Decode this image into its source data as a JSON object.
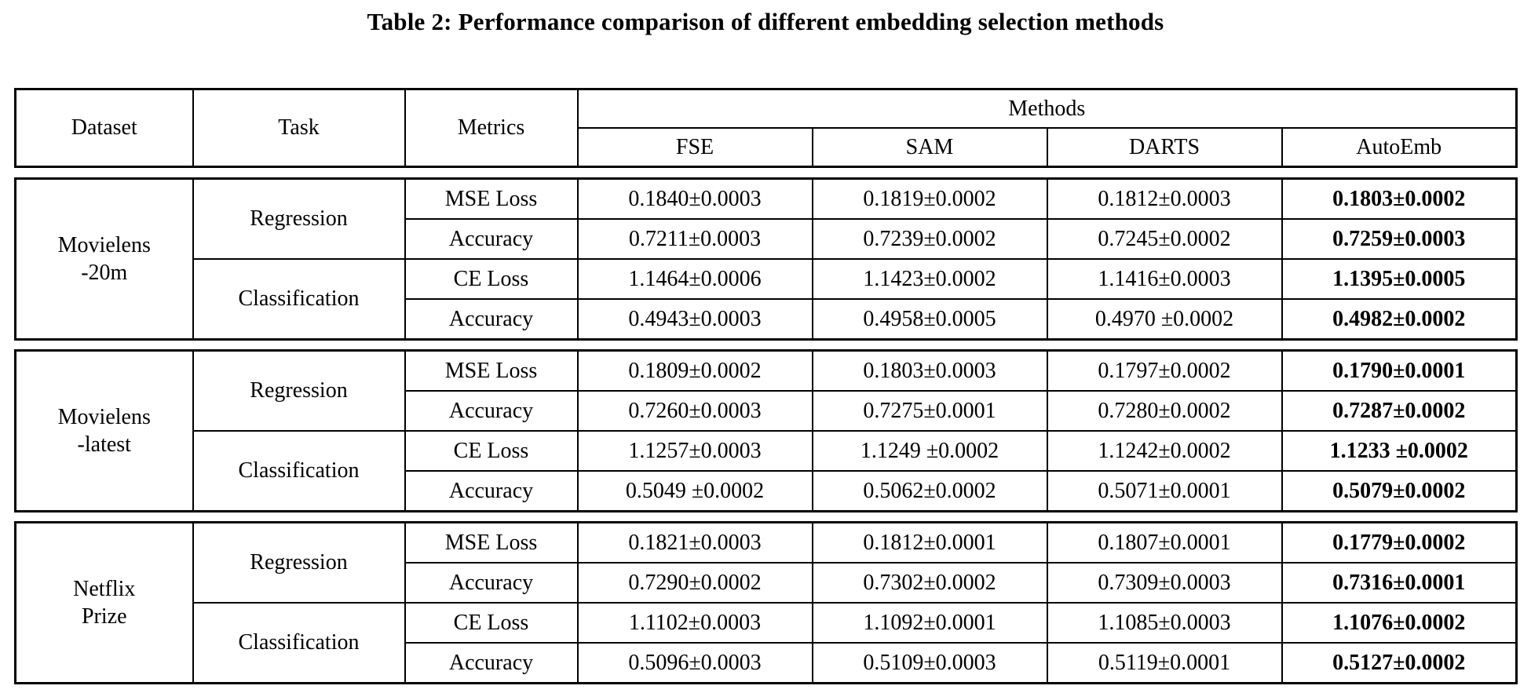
{
  "title": "Table 2: Performance comparison of different embedding selection methods",
  "table": {
    "header": {
      "dataset": "Dataset",
      "task": "Task",
      "metrics": "Metrics",
      "methods": "Methods",
      "method_names": [
        "FSE",
        "SAM",
        "DARTS",
        "AutoEmb"
      ]
    },
    "best_method_bold": "AutoEmb",
    "blocks": [
      {
        "dataset": [
          "Movielens",
          "-20m"
        ],
        "tasks": [
          {
            "name": "Regression",
            "rows": [
              {
                "metric": "MSE Loss",
                "values": [
                  "0.1840±0.0003",
                  "0.1819±0.0002",
                  "0.1812±0.0003",
                  "0.1803±0.0002"
                ]
              },
              {
                "metric": "Accuracy",
                "values": [
                  "0.7211±0.0003",
                  "0.7239±0.0002",
                  "0.7245±0.0002",
                  "0.7259±0.0003"
                ]
              }
            ]
          },
          {
            "name": "Classification",
            "rows": [
              {
                "metric": "CE Loss",
                "values": [
                  "1.1464±0.0006",
                  "1.1423±0.0002",
                  "1.1416±0.0003",
                  "1.1395±0.0005"
                ]
              },
              {
                "metric": "Accuracy",
                "values": [
                  "0.4943±0.0003",
                  "0.4958±0.0005",
                  "0.4970 ±0.0002",
                  "0.4982±0.0002"
                ]
              }
            ]
          }
        ]
      },
      {
        "dataset": [
          "Movielens",
          "-latest"
        ],
        "tasks": [
          {
            "name": "Regression",
            "rows": [
              {
                "metric": "MSE Loss",
                "values": [
                  "0.1809±0.0002",
                  "0.1803±0.0003",
                  "0.1797±0.0002",
                  "0.1790±0.0001"
                ]
              },
              {
                "metric": "Accuracy",
                "values": [
                  "0.7260±0.0003",
                  "0.7275±0.0001",
                  "0.7280±0.0002",
                  "0.7287±0.0002"
                ]
              }
            ]
          },
          {
            "name": "Classification",
            "rows": [
              {
                "metric": "CE Loss",
                "values": [
                  "1.1257±0.0003",
                  "1.1249 ±0.0002",
                  "1.1242±0.0002",
                  "1.1233 ±0.0002"
                ]
              },
              {
                "metric": "Accuracy",
                "values": [
                  "0.5049 ±0.0002",
                  "0.5062±0.0002",
                  "0.5071±0.0001",
                  "0.5079±0.0002"
                ]
              }
            ]
          }
        ]
      },
      {
        "dataset": [
          "Netflix",
          "Prize"
        ],
        "tasks": [
          {
            "name": "Regression",
            "rows": [
              {
                "metric": "MSE Loss",
                "values": [
                  "0.1821±0.0003",
                  "0.1812±0.0001",
                  "0.1807±0.0001",
                  "0.1779±0.0002"
                ]
              },
              {
                "metric": "Accuracy",
                "values": [
                  "0.7290±0.0002",
                  "0.7302±0.0002",
                  "0.7309±0.0003",
                  "0.7316±0.0001"
                ]
              }
            ]
          },
          {
            "name": "Classification",
            "rows": [
              {
                "metric": "CE Loss",
                "values": [
                  "1.1102±0.0003",
                  "1.1092±0.0001",
                  "1.1085±0.0003",
                  "1.1076±0.0002"
                ]
              },
              {
                "metric": "Accuracy",
                "values": [
                  "0.5096±0.0003",
                  "0.5109±0.0003",
                  "0.5119±0.0001",
                  "0.5127±0.0002"
                ]
              }
            ]
          }
        ]
      }
    ]
  }
}
